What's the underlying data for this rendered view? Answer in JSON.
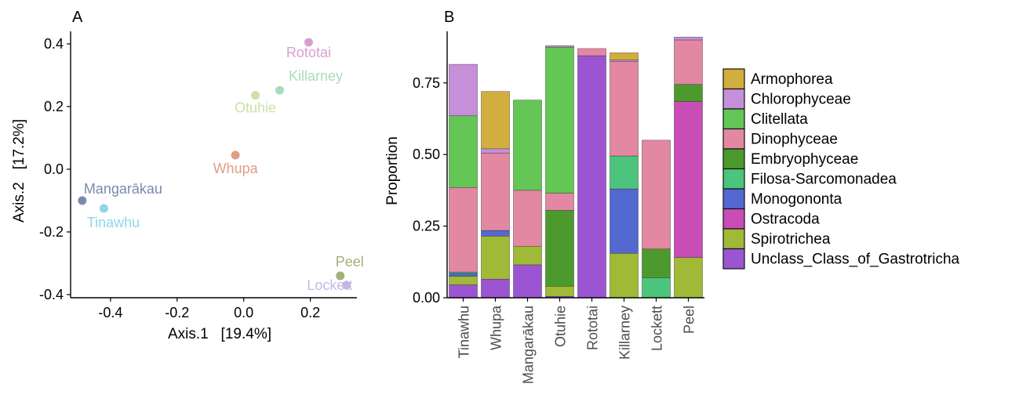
{
  "chart_data": [
    {
      "type": "scatter",
      "panel": "A",
      "xlabel": "Axis.1   [19.4%]",
      "ylabel": "Axis.2   [17.2%]",
      "xlim": [
        -0.52,
        0.34
      ],
      "ylim": [
        -0.41,
        0.44
      ],
      "xticks": [
        -0.4,
        -0.2,
        0.0,
        0.2
      ],
      "yticks": [
        -0.4,
        -0.2,
        0.0,
        0.2,
        0.4
      ],
      "xtick_labels": [
        "-0.4",
        "-0.2",
        "0.0",
        "0.2"
      ],
      "ytick_labels": [
        "-0.4",
        "-0.2",
        "0.0",
        "0.2",
        "0.4"
      ],
      "grid": false,
      "points": [
        {
          "label": "Rototai",
          "x": 0.195,
          "y": 0.405,
          "color": "#d9a0ce"
        },
        {
          "label": "Killarney",
          "x": 0.108,
          "y": 0.252,
          "color": "#a8dcbc"
        },
        {
          "label": "Otuhie",
          "x": 0.035,
          "y": 0.236,
          "color": "#cfe0a8"
        },
        {
          "label": "Whupa",
          "x": -0.025,
          "y": 0.045,
          "color": "#e09e82"
        },
        {
          "label": "Mangarākau",
          "x": -0.485,
          "y": -0.1,
          "color": "#7a8aaf"
        },
        {
          "label": "Tinawhu",
          "x": -0.42,
          "y": -0.125,
          "color": "#8fd6e8"
        },
        {
          "label": "Peel",
          "x": 0.29,
          "y": -0.34,
          "color": "#a4b07a"
        },
        {
          "label": "Lockett",
          "x": 0.308,
          "y": -0.37,
          "color": "#c4b8e2"
        }
      ]
    },
    {
      "type": "bar",
      "stacked": true,
      "panel": "B",
      "ylabel": "Proportion",
      "xlabel": "",
      "ylim": [
        0,
        0.93
      ],
      "yticks": [
        0.0,
        0.25,
        0.5,
        0.75
      ],
      "ytick_labels": [
        "0.00",
        "0.25",
        "0.50",
        "0.75"
      ],
      "grid": false,
      "legend_position": "right",
      "categories": [
        "Tinawhu",
        "Whupa",
        "Mangarākau",
        "Otuhie",
        "Rototai",
        "Killarney",
        "Lockett",
        "Peel"
      ],
      "series": [
        {
          "name": "Armophorea",
          "color": "#d1ae3e",
          "values": [
            0,
            0.2,
            0,
            0,
            0,
            0.025,
            0,
            0
          ]
        },
        {
          "name": "Chlorophyceae",
          "color": "#c58fd9",
          "values": [
            0.18,
            0.015,
            0,
            0.005,
            0,
            0.005,
            0,
            0.01
          ]
        },
        {
          "name": "Clitellata",
          "color": "#63c655",
          "values": [
            0.25,
            0,
            0.315,
            0.51,
            0,
            0,
            0,
            0
          ]
        },
        {
          "name": "Dinophyceae",
          "color": "#e288a2",
          "values": [
            0.295,
            0.27,
            0.195,
            0.06,
            0.025,
            0.33,
            0.38,
            0.155
          ]
        },
        {
          "name": "Embryophyceae",
          "color": "#4c9a2d",
          "values": [
            0,
            0,
            0,
            0.265,
            0,
            0,
            0.1,
            0.06
          ]
        },
        {
          "name": "Filosa-Sarcomonadea",
          "color": "#4cc47c",
          "values": [
            0.005,
            0,
            0,
            0,
            0,
            0.115,
            0.07,
            0
          ]
        },
        {
          "name": "Monogononta",
          "color": "#5468d2",
          "values": [
            0.01,
            0.02,
            0,
            0,
            0,
            0.225,
            0,
            0
          ]
        },
        {
          "name": "Ostracoda",
          "color": "#c94db6",
          "values": [
            0,
            0,
            0,
            0,
            0,
            0,
            0,
            0.545
          ]
        },
        {
          "name": "Spirotrichea",
          "color": "#a0b936",
          "values": [
            0.03,
            0.15,
            0.065,
            0.035,
            0,
            0.155,
            0,
            0.14
          ]
        },
        {
          "name": "Unclass_Class_of_Gastrotricha",
          "color": "#9b55d2",
          "values": [
            0.045,
            0.065,
            0.115,
            0.005,
            0.845,
            0,
            0,
            0
          ]
        }
      ]
    }
  ]
}
